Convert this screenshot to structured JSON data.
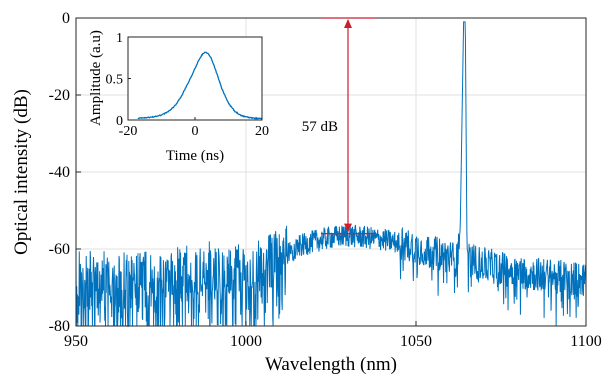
{
  "chart_data": [
    {
      "id": "main",
      "type": "line",
      "title": "",
      "xlabel": "Wavelength (nm)",
      "ylabel": "Optical intensity (dB)",
      "xlim": [
        950,
        1100
      ],
      "ylim": [
        -80,
        0
      ],
      "xticks": [
        950,
        1000,
        1050,
        1100
      ],
      "yticks": [
        0,
        -20,
        -40,
        -60,
        -80
      ],
      "grid": true,
      "series_color": "#0072BD",
      "series": [
        {
          "x": [
            950,
            960,
            970,
            980,
            990,
            1000,
            1005,
            1010,
            1015,
            1020,
            1025,
            1030,
            1035,
            1040,
            1045,
            1050,
            1055,
            1060,
            1062,
            1063,
            1064,
            1064.5,
            1065,
            1066,
            1070,
            1075,
            1080,
            1085,
            1090,
            1095,
            1100
          ],
          "y": [
            -68,
            -68,
            -68,
            -67,
            -65,
            -66,
            -64,
            -62,
            -59.5,
            -58,
            -57,
            -56.5,
            -57,
            -57.5,
            -58.5,
            -59.5,
            -61,
            -62,
            -63,
            -55,
            -1,
            -1,
            -60,
            -63,
            -64,
            -65,
            -66,
            -66.5,
            -67,
            -67.5,
            -68
          ]
        }
      ],
      "annotations": [
        {
          "text": "57 dB",
          "x_from": 1030,
          "y_top": 0,
          "y_bottom": -56,
          "color": "#cc1f2e"
        }
      ]
    },
    {
      "id": "inset",
      "type": "line",
      "title": "",
      "xlabel": "Time (ns)",
      "ylabel": "Amplitude (a.u)",
      "xlim": [
        -20,
        20
      ],
      "ylim": [
        0,
        1
      ],
      "xticks": [
        -20,
        0,
        20
      ],
      "yticks": [
        0,
        0.5,
        1
      ],
      "grid": false,
      "series_color": "#0072BD",
      "series": [
        {
          "x": [
            -17,
            -14,
            -12,
            -10,
            -8,
            -6,
            -4,
            -2,
            0,
            1,
            2,
            3,
            4,
            5,
            6,
            8,
            10,
            12,
            14,
            16,
            18,
            20
          ],
          "y": [
            0.02,
            0.03,
            0.04,
            0.06,
            0.1,
            0.17,
            0.29,
            0.45,
            0.62,
            0.71,
            0.78,
            0.82,
            0.8,
            0.73,
            0.62,
            0.38,
            0.2,
            0.1,
            0.05,
            0.03,
            0.02,
            0.02
          ]
        }
      ]
    }
  ]
}
